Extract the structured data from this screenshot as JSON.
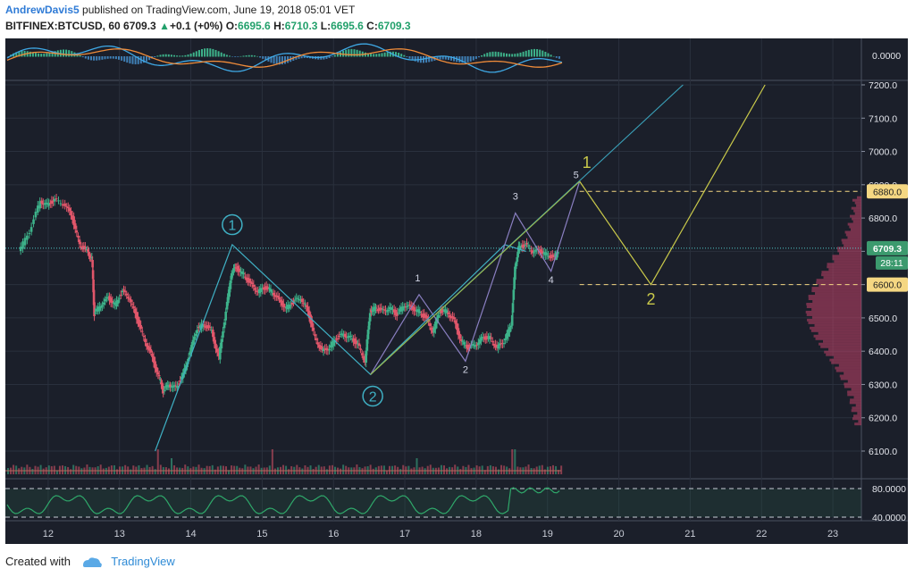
{
  "header": {
    "author": "AndrewDavis5",
    "published": "published on TradingView.com, June 19, 2018 05:01 VET",
    "symbol": "BITFINEX:BTCUSD, 60",
    "last": "6709.3",
    "change": "+0.1 (+0%)",
    "o_label": "O:",
    "o": "6695.6",
    "h_label": "H:",
    "h": "6710.3",
    "l_label": "L:",
    "l": "6695.6",
    "c_label": "C:",
    "c": "6709.3"
  },
  "footer": {
    "created": "Created with",
    "brand": "TradingView"
  },
  "colors": {
    "bg": "#1b1f2a",
    "up": "#3db28a",
    "down": "#e0566a",
    "grid": "#2a303d",
    "wave": "#3fb0c4",
    "yellow": "#c9c94a",
    "purple": "#8a7fc1",
    "price_tag": "#3c9a6e",
    "level_tag": "#f5d782"
  },
  "chart_data": {
    "type": "line",
    "title": "",
    "x_ticks": [
      "12",
      "13",
      "14",
      "15",
      "16",
      "17",
      "18",
      "19",
      "20",
      "21",
      "22",
      "23"
    ],
    "y_ticks": [
      "7200.0",
      "7100.0",
      "7000.0",
      "6900.0",
      "6800.0",
      "6700.0",
      "6600.0",
      "6500.0",
      "6400.0",
      "6300.0",
      "6200.0",
      "6100.0"
    ],
    "ylim": [
      6050,
      7200
    ],
    "current_price": 6709.3,
    "current_price_label": "6709.3",
    "countdown": "28:11",
    "levels": [
      {
        "value": 6880,
        "label": "6880.0"
      },
      {
        "value": 6600,
        "label": "6600.0"
      }
    ],
    "price_path": [
      [
        11.6,
        6700
      ],
      [
        11.75,
        6760
      ],
      [
        11.9,
        6850
      ],
      [
        12.0,
        6840
      ],
      [
        12.1,
        6855
      ],
      [
        12.25,
        6840
      ],
      [
        12.35,
        6800
      ],
      [
        12.45,
        6720
      ],
      [
        12.55,
        6700
      ],
      [
        12.62,
        6680
      ],
      [
        12.65,
        6510
      ],
      [
        12.75,
        6540
      ],
      [
        12.85,
        6560
      ],
      [
        12.95,
        6540
      ],
      [
        13.05,
        6580
      ],
      [
        13.15,
        6560
      ],
      [
        13.25,
        6500
      ],
      [
        13.35,
        6440
      ],
      [
        13.45,
        6390
      ],
      [
        13.55,
        6330
      ],
      [
        13.62,
        6280
      ],
      [
        13.7,
        6300
      ],
      [
        13.8,
        6290
      ],
      [
        13.9,
        6330
      ],
      [
        14.0,
        6400
      ],
      [
        14.1,
        6470
      ],
      [
        14.2,
        6480
      ],
      [
        14.3,
        6460
      ],
      [
        14.4,
        6380
      ],
      [
        14.5,
        6520
      ],
      [
        14.58,
        6640
      ],
      [
        14.65,
        6650
      ],
      [
        14.75,
        6630
      ],
      [
        14.85,
        6600
      ],
      [
        14.95,
        6580
      ],
      [
        15.05,
        6590
      ],
      [
        15.15,
        6580
      ],
      [
        15.25,
        6550
      ],
      [
        15.35,
        6530
      ],
      [
        15.45,
        6550
      ],
      [
        15.55,
        6560
      ],
      [
        15.65,
        6520
      ],
      [
        15.75,
        6440
      ],
      [
        15.85,
        6400
      ],
      [
        15.95,
        6410
      ],
      [
        16.05,
        6440
      ],
      [
        16.15,
        6450
      ],
      [
        16.25,
        6440
      ],
      [
        16.35,
        6420
      ],
      [
        16.45,
        6370
      ],
      [
        16.52,
        6520
      ],
      [
        16.6,
        6530
      ],
      [
        16.7,
        6520
      ],
      [
        16.8,
        6530
      ],
      [
        16.9,
        6510
      ],
      [
        17.0,
        6540
      ],
      [
        17.1,
        6530
      ],
      [
        17.2,
        6520
      ],
      [
        17.3,
        6500
      ],
      [
        17.4,
        6460
      ],
      [
        17.5,
        6520
      ],
      [
        17.6,
        6520
      ],
      [
        17.7,
        6490
      ],
      [
        17.8,
        6430
      ],
      [
        17.9,
        6410
      ],
      [
        18.0,
        6420
      ],
      [
        18.1,
        6440
      ],
      [
        18.2,
        6440
      ],
      [
        18.3,
        6410
      ],
      [
        18.4,
        6430
      ],
      [
        18.5,
        6480
      ],
      [
        18.55,
        6650
      ],
      [
        18.6,
        6710
      ],
      [
        18.7,
        6720
      ],
      [
        18.8,
        6700
      ],
      [
        18.9,
        6700
      ],
      [
        19.0,
        6690
      ],
      [
        19.1,
        6680
      ],
      [
        19.15,
        6700
      ]
    ],
    "annotations": {
      "wave_main": [
        [
          13.5,
          6100
        ],
        [
          14.58,
          6720
        ],
        [
          16.52,
          6330
        ],
        [
          18.4,
          6720
        ],
        [
          18.7,
          6700
        ]
      ],
      "wave_sub": [
        [
          16.52,
          6330
        ],
        [
          17.2,
          6570
        ],
        [
          17.85,
          6370
        ],
        [
          18.55,
          6815
        ],
        [
          19.05,
          6640
        ],
        [
          19.45,
          6910
        ]
      ],
      "projection": [
        [
          19.45,
          6910
        ],
        [
          20.45,
          6600
        ],
        [
          22.05,
          7200
        ]
      ],
      "trendlines": [
        [
          [
            16.52,
            6330
          ],
          [
            20.9,
            7200
          ]
        ],
        [
          [
            16.52,
            6330
          ],
          [
            19.45,
            6910
          ]
        ]
      ],
      "labels": [
        {
          "text": "1",
          "x": 14.58,
          "y": 6780,
          "circled": true
        },
        {
          "text": "2",
          "x": 16.55,
          "y": 6265,
          "circled": true
        },
        {
          "text": "1",
          "x": 17.18,
          "y": 6610,
          "circled": false
        },
        {
          "text": "2",
          "x": 17.85,
          "y": 6335,
          "circled": false
        },
        {
          "text": "3",
          "x": 18.55,
          "y": 6855,
          "circled": false
        },
        {
          "text": "4",
          "x": 19.05,
          "y": 6605,
          "circled": false
        },
        {
          "text": "5",
          "x": 19.4,
          "y": 6920,
          "circled": false
        },
        {
          "text": "1",
          "x": 19.55,
          "y": 6950,
          "circled": false,
          "color": "yellow"
        },
        {
          "text": "2",
          "x": 20.45,
          "y": 6540,
          "circled": false,
          "color": "yellow"
        }
      ]
    },
    "upper_indicator": {
      "zero_label": "0.0000"
    },
    "lower_indicator": {
      "levels": [
        "80.0000",
        "40.0000"
      ]
    }
  }
}
